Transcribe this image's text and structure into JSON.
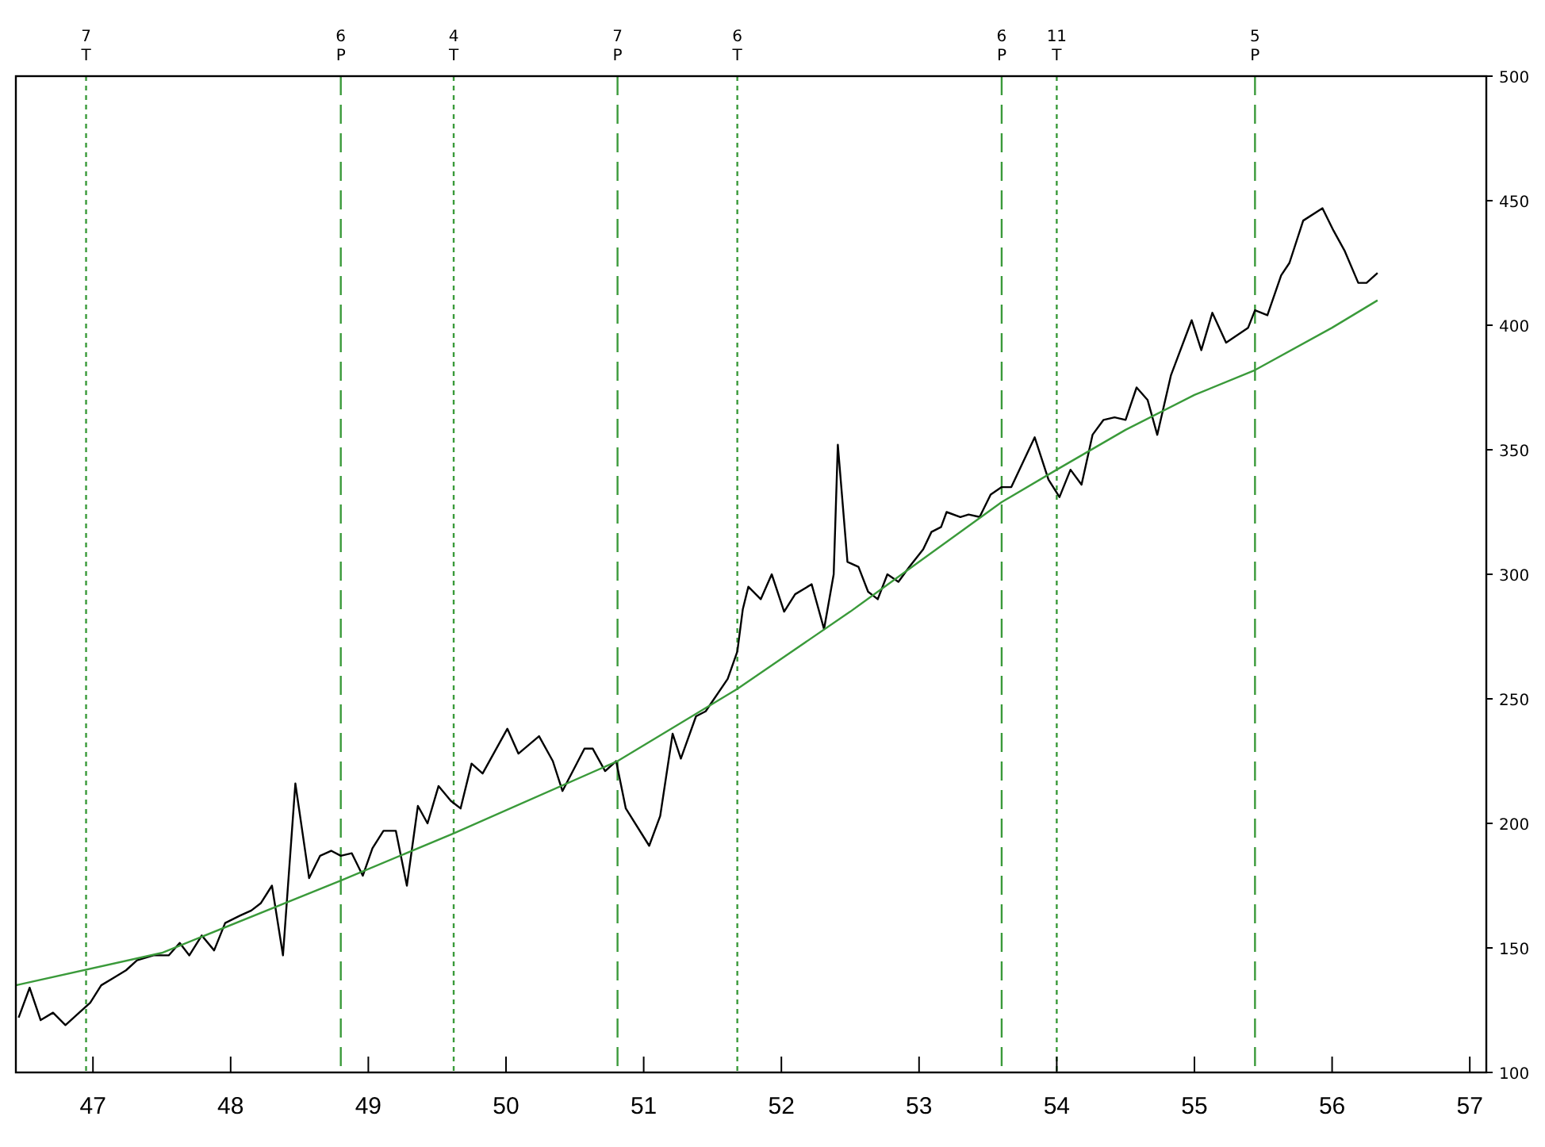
{
  "chart_data": {
    "type": "line",
    "xlim": [
      46.44,
      57.12
    ],
    "xticks": [
      47,
      48,
      49,
      50,
      51,
      52,
      53,
      54,
      55,
      56,
      57
    ],
    "ylim": [
      100,
      500
    ],
    "yticks": [
      100,
      150,
      200,
      250,
      300,
      350,
      400,
      450,
      500
    ],
    "series": [
      {
        "color": "#000000",
        "x": [
          46.46,
          46.54,
          46.62,
          46.71,
          46.8,
          46.9,
          46.98,
          47.06,
          47.15,
          47.24,
          47.32,
          47.44,
          47.55,
          47.63,
          47.7,
          47.79,
          47.88,
          47.96,
          48.07,
          48.15,
          48.22,
          48.3,
          48.38,
          48.47,
          48.57,
          48.65,
          48.73,
          48.8,
          48.88,
          48.96,
          49.03,
          49.11,
          49.2,
          49.28,
          49.36,
          49.43,
          49.51,
          49.6,
          49.67,
          49.75,
          49.83,
          50.01,
          50.09,
          50.24,
          50.34,
          50.41,
          50.57,
          50.63,
          50.72,
          50.8,
          50.87,
          51.04,
          51.12,
          51.21,
          51.27,
          51.38,
          51.45,
          51.61,
          51.68,
          51.72,
          51.76,
          51.85,
          51.93,
          52.02,
          52.1,
          52.22,
          52.31,
          52.38,
          52.41,
          52.48,
          52.56,
          52.63,
          52.7,
          52.77,
          52.85,
          52.93,
          53.03,
          53.09,
          53.16,
          53.2,
          53.3,
          53.36,
          53.44,
          53.52,
          53.6,
          53.67,
          53.84,
          53.94,
          54.02,
          54.1,
          54.18,
          54.26,
          54.34,
          54.42,
          54.5,
          54.58,
          54.66,
          54.73,
          54.83,
          54.98,
          55.05,
          55.13,
          55.23,
          55.39,
          55.44,
          55.53,
          55.63,
          55.69,
          55.79,
          55.93,
          56.01,
          56.09,
          56.19,
          56.25,
          56.33
        ],
        "values": [
          122,
          134,
          121,
          124,
          119,
          124,
          128,
          135,
          138,
          141,
          145,
          147,
          147,
          152,
          147,
          155,
          149,
          160,
          163,
          165,
          168,
          175,
          147,
          216,
          178,
          187,
          189,
          187,
          188,
          179,
          190,
          197,
          197,
          175,
          207,
          200,
          215,
          209,
          206,
          224,
          220,
          238,
          228,
          235,
          225,
          213,
          230,
          230,
          221,
          225,
          206,
          191,
          203,
          236,
          226,
          243,
          245,
          258,
          269,
          286,
          295,
          290,
          300,
          285,
          292,
          296,
          278,
          300,
          352,
          305,
          303,
          293,
          290,
          300,
          297,
          303,
          310,
          317,
          319,
          325,
          323,
          324,
          323,
          332,
          335,
          335,
          355,
          338,
          331,
          342,
          336,
          356,
          362,
          363,
          362,
          375,
          370,
          356,
          380,
          402,
          390,
          405,
          393,
          399,
          406,
          404,
          420,
          425,
          442,
          447,
          438,
          430,
          417,
          417,
          421
        ]
      },
      {
        "color": "#3a9a3a",
        "x": [
          46.44,
          47.5,
          48.8,
          49.62,
          50.81,
          51.68,
          52.5,
          53.0,
          53.6,
          54.0,
          54.5,
          55.0,
          55.44,
          56.0,
          56.33
        ],
        "values": [
          135,
          148,
          177,
          196,
          225,
          254,
          285,
          305,
          329,
          342,
          358,
          372,
          382,
          399,
          410
        ]
      }
    ],
    "ref_lines": [
      {
        "axis": "x",
        "value": 46.95,
        "label": "7\nT",
        "color": "#3a9a3a",
        "line_style": "dotted"
      },
      {
        "axis": "x",
        "value": 48.8,
        "label": "6\nP",
        "color": "#3a9a3a",
        "line_style": "dashed"
      },
      {
        "axis": "x",
        "value": 49.62,
        "label": "4\nT",
        "color": "#3a9a3a",
        "line_style": "dotted"
      },
      {
        "axis": "x",
        "value": 50.81,
        "label": "7\nP",
        "color": "#3a9a3a",
        "line_style": "dashed"
      },
      {
        "axis": "x",
        "value": 51.68,
        "label": "6\nT",
        "color": "#3a9a3a",
        "line_style": "dotted"
      },
      {
        "axis": "x",
        "value": 53.6,
        "label": "6\nP",
        "color": "#3a9a3a",
        "line_style": "dashed"
      },
      {
        "axis": "x",
        "value": 54.0,
        "label": "11\nT",
        "color": "#3a9a3a",
        "line_style": "dotted"
      },
      {
        "axis": "x",
        "value": 55.44,
        "label": "5\nP",
        "color": "#3a9a3a",
        "line_style": "dashed"
      }
    ]
  }
}
